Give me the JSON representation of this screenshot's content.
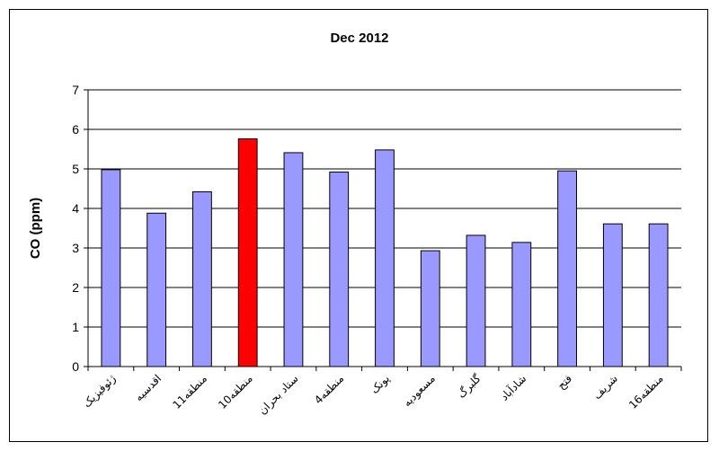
{
  "chart_data": {
    "type": "bar",
    "title": "Dec 2012",
    "xlabel": "",
    "ylabel": "CO (ppm)",
    "ylim": [
      0,
      7
    ],
    "yticks": [
      0,
      1,
      2,
      3,
      4,
      5,
      6,
      7
    ],
    "grid": true,
    "legend": "none",
    "categories": [
      "ژئوفیزیک",
      "اقدسیه",
      "منطقه11",
      "منطقه10",
      "ستاد بحران",
      "منطقه4",
      "پونک",
      "مسعودیه",
      "گلبرگ",
      "شادآباد",
      "فتح",
      "شریف",
      "منطقه16"
    ],
    "values": [
      4.98,
      3.88,
      4.42,
      5.76,
      5.41,
      4.92,
      5.48,
      2.93,
      3.32,
      3.14,
      4.95,
      3.61,
      3.61
    ],
    "colors": {
      "bar": "#9999FF",
      "highlight": "#FF0000",
      "highlight_index": 3,
      "outline": "#000000"
    }
  }
}
